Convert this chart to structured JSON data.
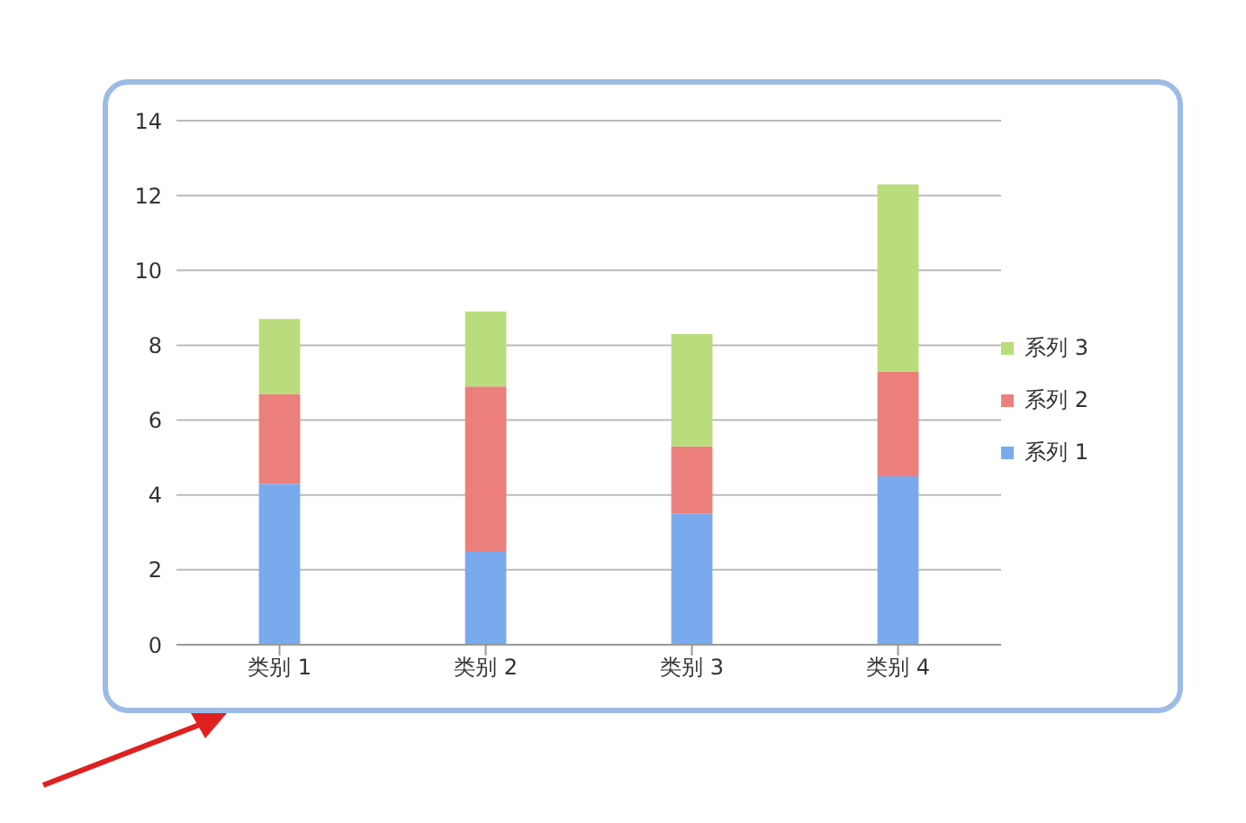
{
  "chart_data": {
    "type": "bar",
    "stacked": true,
    "categories": [
      "类别 1",
      "类别 2",
      "类别 3",
      "类别 4"
    ],
    "series": [
      {
        "name": "系列 1",
        "color": "#7aaaee",
        "values": [
          4.3,
          2.5,
          3.5,
          4.5
        ]
      },
      {
        "name": "系列 2",
        "color": "#ec7f7c",
        "values": [
          2.4,
          4.4,
          1.8,
          2.8
        ]
      },
      {
        "name": "系列 3",
        "color": "#b9dd7c",
        "values": [
          2,
          2,
          3,
          5
        ]
      }
    ],
    "ylim": [
      0,
      14
    ],
    "yticks": [
      0,
      2,
      4,
      6,
      8,
      10,
      12,
      14
    ],
    "grid": "y",
    "legend": "right"
  }
}
